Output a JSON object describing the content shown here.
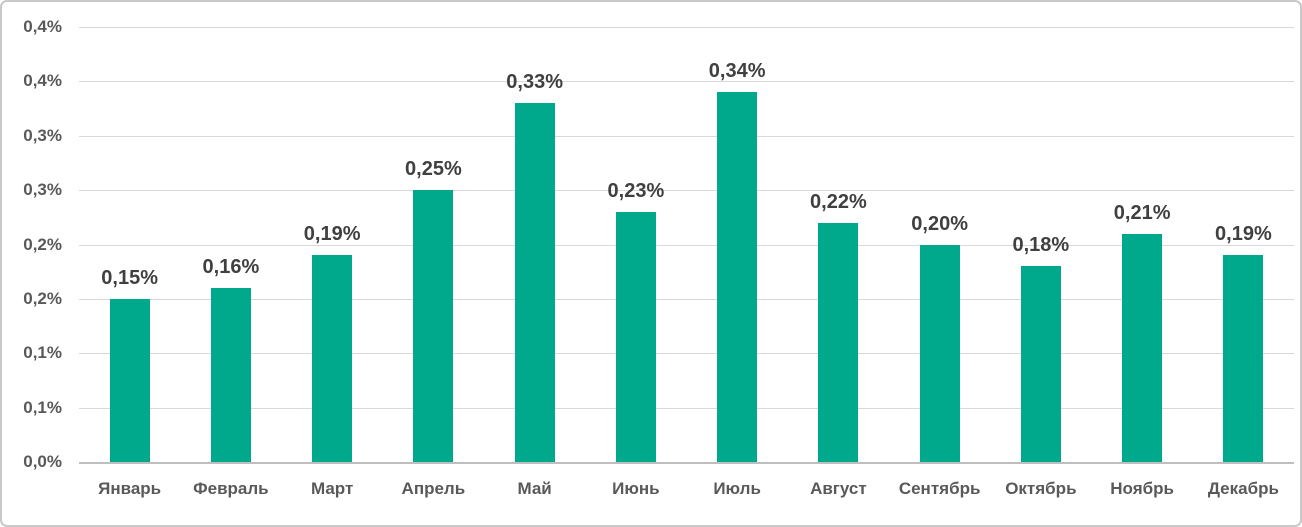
{
  "chart_style": {
    "bar_color": "#00a98c",
    "gridline_color": "#d9d9d9",
    "axis_line_color": "#bfbfbf",
    "tick_label_color": "#595959",
    "data_label_color": "#404040",
    "chart_border_color": "#c9c9c9",
    "background_color": "#ffffff"
  },
  "chart_data": {
    "type": "bar",
    "title": "",
    "xlabel": "",
    "ylabel": "",
    "unit": "%",
    "decimal_separator": ",",
    "grid": true,
    "legend": false,
    "categories": [
      "Январь",
      "Февраль",
      "Март",
      "Апрель",
      "Май",
      "Июнь",
      "Июль",
      "Август",
      "Сентябрь",
      "Октябрь",
      "Ноябрь",
      "Декабрь"
    ],
    "values": [
      0.15,
      0.16,
      0.19,
      0.25,
      0.33,
      0.23,
      0.34,
      0.22,
      0.2,
      0.18,
      0.21,
      0.19
    ],
    "data_labels": [
      "0,15%",
      "0,16%",
      "0,19%",
      "0,25%",
      "0,33%",
      "0,23%",
      "0,34%",
      "0,22%",
      "0,20%",
      "0,18%",
      "0,21%",
      "0,19%"
    ],
    "ylim": [
      0,
      0.4
    ],
    "ytick_step": 0.05,
    "yticks": [
      {
        "value": 0.0,
        "label": "0,0%"
      },
      {
        "value": 0.05,
        "label": "0,1%"
      },
      {
        "value": 0.1,
        "label": "0,1%"
      },
      {
        "value": 0.15,
        "label": "0,2%"
      },
      {
        "value": 0.2,
        "label": "0,2%"
      },
      {
        "value": 0.25,
        "label": "0,3%"
      },
      {
        "value": 0.3,
        "label": "0,3%"
      },
      {
        "value": 0.35,
        "label": "0,4%"
      },
      {
        "value": 0.4,
        "label": "0,4%"
      }
    ]
  }
}
